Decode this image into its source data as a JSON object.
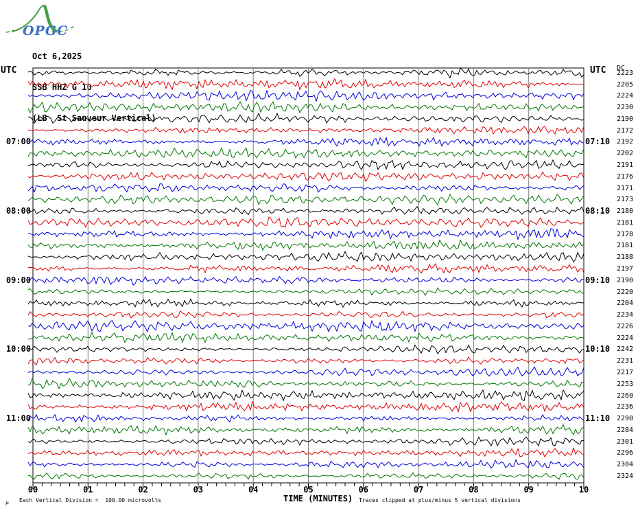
{
  "logo": {
    "text": "OPGC"
  },
  "header": {
    "date": "Oct 6,2025",
    "station": "SSB HHZ G 10",
    "location": "(LB  St Sauveur Vertical)"
  },
  "axis": {
    "utc_left": "UTC",
    "utc_right": "UTC",
    "x_title": "TIME (MINUTES)"
  },
  "footer": {
    "micro": "µ",
    "scale_note": "Each Vertical Division =  100.00 microvolts",
    "clip_note": "Traces clipped at plus/minus 5 vertical divisions"
  },
  "colors": {
    "black": "#000000",
    "red": "#e00000",
    "blue": "#0000dd",
    "green": "#007700",
    "grid": "#808080",
    "logo_green": "#44a048",
    "logo_blue": "#3a6fc4"
  },
  "chart_data": {
    "type": "line",
    "kind": "seismogram-helicorder",
    "title": "SSB HHZ G 10",
    "date": "Oct 6,2025",
    "station_description": "(LB  St Sauveur Vertical)",
    "xlabel": "TIME (MINUTES)",
    "x_ticks": [
      "00",
      "01",
      "02",
      "03",
      "04",
      "05",
      "06",
      "07",
      "08",
      "09",
      "10"
    ],
    "x_range_minutes": [
      0,
      10
    ],
    "minutes_per_row": 10,
    "minor_ticks_per_minute": 6,
    "rows": 36,
    "color_cycle": [
      "black",
      "red",
      "blue",
      "green"
    ],
    "amplitude_scale": "Each Vertical Division = 100.00 microvolts",
    "clip_note": "Traces clipped at plus/minus 5 vertical divisions",
    "grid": "vertical minute lines at 1..9",
    "traces": [
      {
        "row": 1,
        "color": "black",
        "right_extra": "DC",
        "right_value": "2223"
      },
      {
        "row": 2,
        "color": "red",
        "right_value": "2205"
      },
      {
        "row": 3,
        "color": "blue",
        "right_value": "2224"
      },
      {
        "row": 4,
        "color": "green",
        "right_value": "2230"
      },
      {
        "row": 5,
        "color": "black",
        "right_value": "2190"
      },
      {
        "row": 6,
        "color": "red",
        "right_value": "2172"
      },
      {
        "row": 7,
        "color": "blue",
        "left_label": "07:00",
        "right_label": "07:10",
        "right_value": "2192"
      },
      {
        "row": 8,
        "color": "green",
        "right_value": "2202"
      },
      {
        "row": 9,
        "color": "black",
        "right_value": "2191"
      },
      {
        "row": 10,
        "color": "red",
        "right_value": "2176"
      },
      {
        "row": 11,
        "color": "blue",
        "right_value": "2171"
      },
      {
        "row": 12,
        "color": "green",
        "right_value": "2173"
      },
      {
        "row": 13,
        "color": "black",
        "left_label": "08:00",
        "right_label": "08:10",
        "right_value": "2180"
      },
      {
        "row": 14,
        "color": "red",
        "right_value": "2181"
      },
      {
        "row": 15,
        "color": "blue",
        "right_value": "2178"
      },
      {
        "row": 16,
        "color": "green",
        "right_value": "2181"
      },
      {
        "row": 17,
        "color": "black",
        "right_value": "2188"
      },
      {
        "row": 18,
        "color": "red",
        "right_value": "2197"
      },
      {
        "row": 19,
        "color": "blue",
        "left_label": "09:00",
        "right_label": "09:10",
        "right_value": "2190"
      },
      {
        "row": 20,
        "color": "green",
        "right_value": "2220"
      },
      {
        "row": 21,
        "color": "black",
        "right_value": "2204"
      },
      {
        "row": 22,
        "color": "red",
        "right_value": "2234"
      },
      {
        "row": 23,
        "color": "blue",
        "right_value": "2226"
      },
      {
        "row": 24,
        "color": "green",
        "right_value": "2224"
      },
      {
        "row": 25,
        "color": "black",
        "left_label": "10:00",
        "right_label": "10:10",
        "right_value": "2242"
      },
      {
        "row": 26,
        "color": "red",
        "right_value": "2231"
      },
      {
        "row": 27,
        "color": "blue",
        "right_value": "2217"
      },
      {
        "row": 28,
        "color": "green",
        "right_value": "2253"
      },
      {
        "row": 29,
        "color": "black",
        "right_value": "2260"
      },
      {
        "row": 30,
        "color": "red",
        "right_value": "2236"
      },
      {
        "row": 31,
        "color": "blue",
        "left_label": "11:00",
        "right_label": "11:10",
        "right_value": "2290"
      },
      {
        "row": 32,
        "color": "green",
        "right_value": "2284"
      },
      {
        "row": 33,
        "color": "black",
        "right_value": "2301"
      },
      {
        "row": 34,
        "color": "red",
        "right_value": "2296"
      },
      {
        "row": 35,
        "color": "blue",
        "right_value": "2304"
      },
      {
        "row": 36,
        "color": "green",
        "right_value": "2324"
      }
    ]
  }
}
